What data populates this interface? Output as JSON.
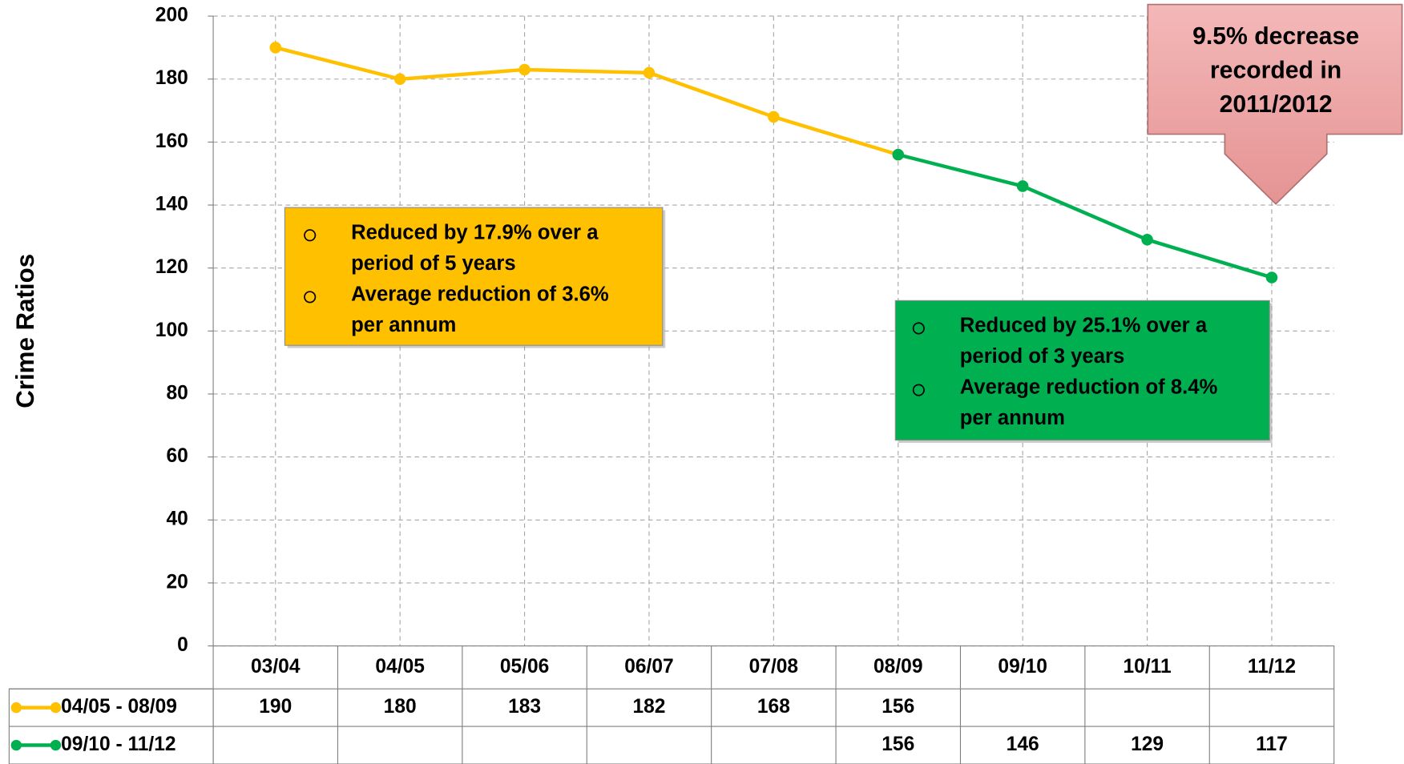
{
  "chart_data": {
    "type": "line",
    "y_label": "Crime Ratios",
    "categories": [
      "03/04",
      "04/05",
      "05/06",
      "06/07",
      "07/08",
      "08/09",
      "09/10",
      "10/11",
      "11/12"
    ],
    "series": [
      {
        "name": "04/05 - 08/09",
        "color": "#ffc000",
        "values": [
          190,
          180,
          183,
          182,
          168,
          156,
          null,
          null,
          null
        ]
      },
      {
        "name": "09/10 - 11/12",
        "color": "#00b050",
        "values": [
          null,
          null,
          null,
          null,
          null,
          156,
          146,
          129,
          117
        ]
      }
    ],
    "ylim": [
      0,
      200
    ],
    "yticks": [
      0,
      20,
      40,
      60,
      80,
      100,
      120,
      140,
      160,
      180,
      200
    ],
    "grid": true,
    "annotations": [
      {
        "lines": [
          "Reduced by 17.9% over a",
          "period of 5 years",
          "Average reduction of 3.6%",
          "per annum"
        ]
      },
      {
        "lines": [
          "Reduced by 25.1% over a",
          "period of 3 years",
          "Average reduction of  8.4%",
          "per annum"
        ]
      },
      {
        "lines": [
          "9.5% decrease",
          "recorded in",
          "2011/2012"
        ]
      }
    ]
  }
}
